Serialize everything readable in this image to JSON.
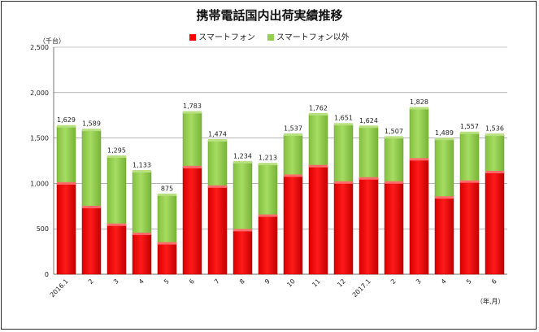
{
  "chart_data": {
    "type": "bar",
    "stacked": true,
    "title": "携帯電話国内出荷実績推移",
    "y_unit_label": "（千台）",
    "x_unit_label": "（年,月）",
    "categories": [
      "2016.1",
      "2",
      "3",
      "4",
      "5",
      "6",
      "7",
      "8",
      "9",
      "10",
      "11",
      "12",
      "2017.1",
      "2",
      "3",
      "4",
      "5",
      "6"
    ],
    "totals": [
      "1,629",
      "1,589",
      "1,295",
      "1,133",
      "875",
      "1,783",
      "1,474",
      "1,234",
      "1,213",
      "1,537",
      "1,762",
      "1,651",
      "1,624",
      "1,507",
      "1,828",
      "1,489",
      "1,557",
      "1,536"
    ],
    "series": [
      {
        "name": "スマートフォン",
        "color": "#ff0000",
        "values": [
          1000,
          740,
          545,
          445,
          340,
          1180,
          965,
          485,
          645,
          1085,
          1190,
          1010,
          1055,
          1010,
          1265,
          845,
          1020,
          1125
        ]
      },
      {
        "name": "スマートフォン以外",
        "color": "#92d050",
        "values": [
          629,
          849,
          750,
          688,
          535,
          603,
          509,
          749,
          568,
          452,
          572,
          641,
          569,
          497,
          563,
          644,
          537,
          411
        ]
      }
    ],
    "yticks": [
      "0",
      "500",
      "1,000",
      "1,500",
      "2,000",
      "2,500"
    ],
    "ylim": [
      0,
      2500
    ],
    "grid": true,
    "legend_position": "top"
  }
}
